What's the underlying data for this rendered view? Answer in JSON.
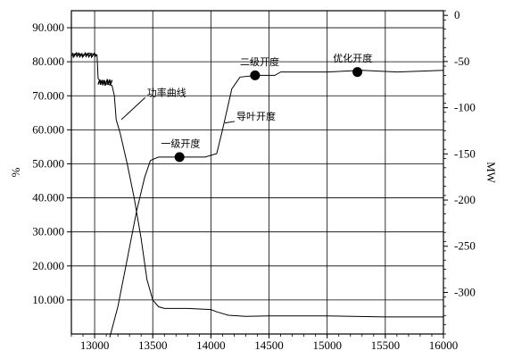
{
  "chart_data": {
    "type": "line",
    "xlim": [
      12800,
      16000
    ],
    "x_ticks": [
      "13000",
      "13500",
      "14000",
      "14500",
      "15000",
      "15500",
      "16000"
    ],
    "ylim_left": [
      0,
      95
    ],
    "y_ticks_left": [
      "90.000",
      "80.000",
      "70.000",
      "60.000",
      "50.000",
      "40.000",
      "30.000",
      "20.000",
      "10.000"
    ],
    "ylim_right": [
      -345,
      5
    ],
    "y_ticks_right": [
      "0",
      "-50",
      "-100",
      "-150",
      "-200",
      "-250",
      "-300"
    ],
    "ylabel_left": "%",
    "ylabel_right": "MW",
    "xlabel": "",
    "grid": true,
    "series": [
      {
        "name": "功率曲线",
        "axis": "left",
        "points": [
          [
            12800,
            82.0
          ],
          [
            12850,
            82.5
          ],
          [
            12900,
            82.0
          ],
          [
            12950,
            82.5
          ],
          [
            13000,
            82.2
          ],
          [
            13020,
            82.0
          ],
          [
            13030,
            75.0
          ],
          [
            13060,
            74.0
          ],
          [
            13080,
            74.5
          ],
          [
            13100,
            73.5
          ],
          [
            13150,
            73.0
          ],
          [
            13170,
            70.0
          ],
          [
            13185,
            63.0
          ],
          [
            13220,
            59.0
          ],
          [
            13280,
            50.0
          ],
          [
            13340,
            40.0
          ],
          [
            13400,
            28.0
          ],
          [
            13450,
            16.0
          ],
          [
            13500,
            10.0
          ],
          [
            13550,
            8.0
          ],
          [
            13600,
            7.5
          ],
          [
            13800,
            7.5
          ],
          [
            14000,
            7.2
          ],
          [
            14050,
            6.5
          ],
          [
            14150,
            5.5
          ],
          [
            14300,
            5.2
          ],
          [
            14500,
            5.3
          ],
          [
            15000,
            5.3
          ],
          [
            15500,
            5.0
          ],
          [
            16000,
            5.0
          ]
        ]
      },
      {
        "name": "导叶开度",
        "axis": "left",
        "points": [
          [
            13130,
            -1.0
          ],
          [
            13200,
            8.0
          ],
          [
            13280,
            22.0
          ],
          [
            13360,
            36.0
          ],
          [
            13430,
            46.0
          ],
          [
            13480,
            51.0
          ],
          [
            13550,
            52.0
          ],
          [
            13750,
            52.0
          ],
          [
            13950,
            52.0
          ],
          [
            14050,
            53.0
          ],
          [
            14100,
            60.0
          ],
          [
            14180,
            72.0
          ],
          [
            14250,
            75.5
          ],
          [
            14400,
            76.0
          ],
          [
            14550,
            76.0
          ],
          [
            14600,
            77.0
          ],
          [
            15000,
            77.0
          ],
          [
            15300,
            77.5
          ],
          [
            15600,
            77.0
          ],
          [
            16000,
            77.5
          ]
        ]
      }
    ],
    "annotations": [
      {
        "text": "功率曲线",
        "label_x": 13450,
        "label_y": 70,
        "arrow_x": 13230,
        "arrow_y": 63
      },
      {
        "text": "导叶开度",
        "label_x": 14220,
        "label_y": 63,
        "arrow_x": 14120,
        "arrow_y": 62
      },
      {
        "text": "一级开度",
        "label_x": 13570,
        "label_y": 55,
        "marker_x": 13730,
        "marker_y": 52
      },
      {
        "text": "二级开度",
        "label_x": 14250,
        "label_y": 79,
        "marker_x": 14380,
        "marker_y": 76
      },
      {
        "text": "优化开度",
        "label_x": 15050,
        "label_y": 80,
        "marker_x": 15260,
        "marker_y": 77
      }
    ]
  }
}
